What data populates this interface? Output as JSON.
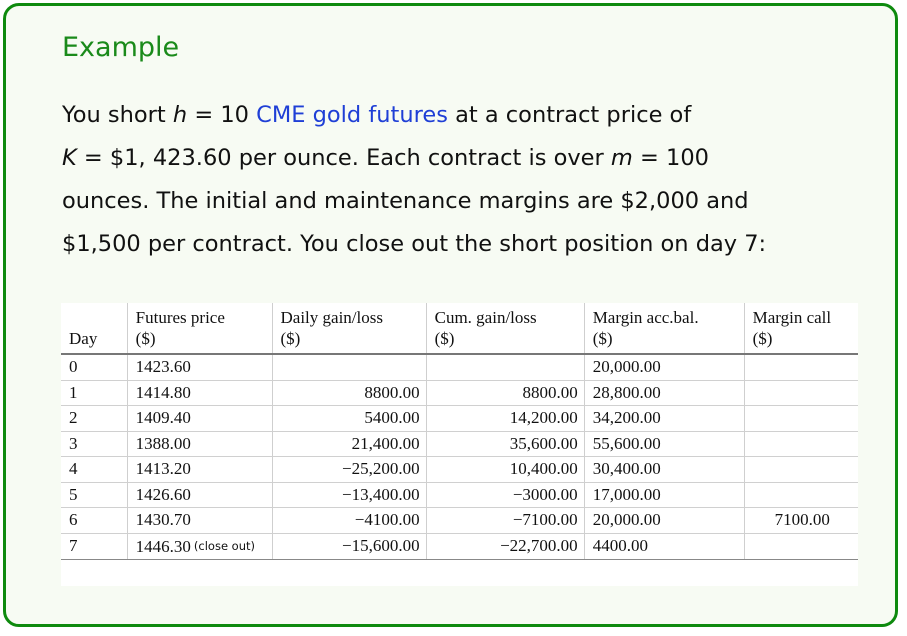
{
  "title": "Example",
  "intro": {
    "p1": "You short ",
    "h_var": "h",
    "h_eq": " = 10 ",
    "link": "CME gold futures",
    "p2": " at a contract price of",
    "k_var": "K",
    "k_eq": " = $1, 423.60 per ounce. Each contract is over ",
    "m_var": "m",
    "m_eq": " = 100",
    "p3": "ounces. The initial and maintenance margins are $2,000 and",
    "p4": "$1,500 per contract. You close out the short position on day 7:"
  },
  "table": {
    "headers": {
      "day": "Day",
      "futures_price": "Futures price",
      "futures_price_unit": "($)",
      "daily": "Daily gain/loss",
      "daily_unit": "($)",
      "cum": "Cum. gain/loss",
      "cum_unit": "($)",
      "margin": "Margin acc.bal.",
      "margin_unit": "($)",
      "call": "Margin call",
      "call_unit": "($)"
    },
    "close_out_note": "(close out)",
    "rows": [
      {
        "day": "0",
        "price": "1423.60",
        "daily": "",
        "cum": "",
        "margin": "20,000.00",
        "call": ""
      },
      {
        "day": "1",
        "price": "1414.80",
        "daily": "8800.00",
        "cum": "8800.00",
        "margin": "28,800.00",
        "call": ""
      },
      {
        "day": "2",
        "price": "1409.40",
        "daily": "5400.00",
        "cum": "14,200.00",
        "margin": "34,200.00",
        "call": ""
      },
      {
        "day": "3",
        "price": "1388.00",
        "daily": "21,400.00",
        "cum": "35,600.00",
        "margin": "55,600.00",
        "call": ""
      },
      {
        "day": "4",
        "price": "1413.20",
        "daily": "−25,200.00",
        "cum": "10,400.00",
        "margin": "30,400.00",
        "call": ""
      },
      {
        "day": "5",
        "price": "1426.60",
        "daily": "−13,400.00",
        "cum": "−3000.00",
        "margin": "17,000.00",
        "call": ""
      },
      {
        "day": "6",
        "price": "1430.70",
        "daily": "−4100.00",
        "cum": "−7100.00",
        "margin": "20,000.00",
        "call": "7100.00"
      },
      {
        "day": "7",
        "price": "1446.30",
        "daily": "−15,600.00",
        "cum": "−22,700.00",
        "margin": "4400.00",
        "call": ""
      }
    ]
  }
}
